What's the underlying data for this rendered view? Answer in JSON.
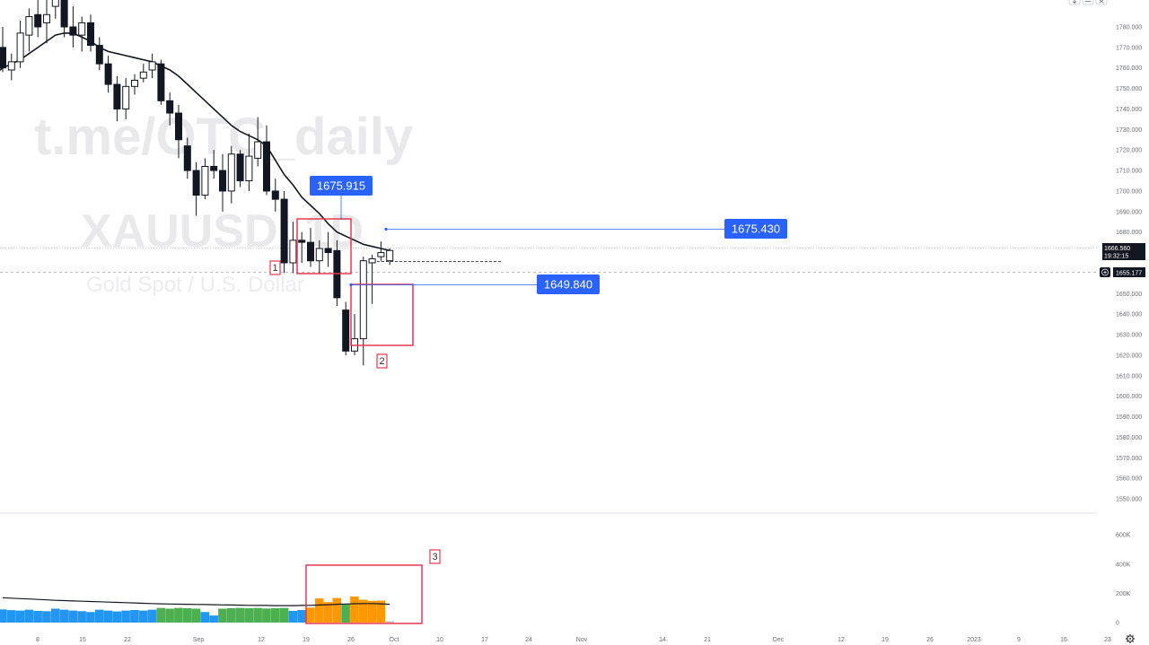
{
  "watermark": {
    "line1": "t.me/OTC_daily",
    "line2": "XAUUSD, 1D",
    "line3": "Gold Spot / U.S. Dollar"
  },
  "top_icons": [
    "down-arrow-icon",
    "minus-icon",
    "close-icon"
  ],
  "settings_icon": "gear-icon",
  "price_axis": {
    "min": 1550,
    "max": 1780,
    "ticks": [
      "1780.000",
      "1770.000",
      "1760.000",
      "1750.000",
      "1740.000",
      "1730.000",
      "1720.000",
      "1710.000",
      "1700.000",
      "1690.000",
      "1680.000",
      "1670.000",
      "1660.000",
      "1650.000",
      "1640.000",
      "1630.000",
      "1620.000",
      "1610.000",
      "1600.000",
      "1590.000",
      "1580.000",
      "1570.000",
      "1560.000",
      "1550.000"
    ],
    "current_price": "1666.560",
    "countdown": "19:32:15",
    "crosshair_price": "1655.177",
    "crosshair_icon": "plus-icon"
  },
  "volume_axis": {
    "max": 650000,
    "ticks": [
      "600K",
      "400K",
      "200K",
      "0"
    ]
  },
  "time_axis": {
    "labels": [
      "8",
      "15",
      "22",
      "Sep",
      "12",
      "19",
      "26",
      "Oct",
      "10",
      "17",
      "24",
      "Nov",
      "14",
      "21",
      "Dec",
      "12",
      "19",
      "26",
      "2023",
      "9",
      "16",
      "23"
    ]
  },
  "annotations": {
    "label_high": "1675.915",
    "label_right": "1675.430",
    "label_low": "1649.840",
    "box_1": "1",
    "box_2": "2",
    "box_3": "3"
  },
  "chart_data": {
    "type": "candlestick",
    "symbol": "XAUUSD",
    "timeframe": "1D",
    "ylim": [
      1550,
      1780
    ],
    "candles": [
      {
        "o": 1770,
        "h": 1780,
        "l": 1758,
        "c": 1760
      },
      {
        "o": 1759,
        "h": 1767,
        "l": 1754,
        "c": 1763
      },
      {
        "o": 1763,
        "h": 1783,
        "l": 1760,
        "c": 1777
      },
      {
        "o": 1776,
        "h": 1789,
        "l": 1768,
        "c": 1785
      },
      {
        "o": 1786,
        "h": 1800,
        "l": 1775,
        "c": 1780
      },
      {
        "o": 1782,
        "h": 1800,
        "l": 1772,
        "c": 1786
      },
      {
        "o": 1790,
        "h": 1800,
        "l": 1784,
        "c": 1796
      },
      {
        "o": 1795,
        "h": 1800,
        "l": 1775,
        "c": 1780
      },
      {
        "o": 1780,
        "h": 1790,
        "l": 1770,
        "c": 1776
      },
      {
        "o": 1776,
        "h": 1785,
        "l": 1768,
        "c": 1782
      },
      {
        "o": 1782,
        "h": 1786,
        "l": 1768,
        "c": 1771
      },
      {
        "o": 1771,
        "h": 1775,
        "l": 1759,
        "c": 1762
      },
      {
        "o": 1762,
        "h": 1766,
        "l": 1748,
        "c": 1752
      },
      {
        "o": 1752,
        "h": 1756,
        "l": 1734,
        "c": 1740
      },
      {
        "o": 1740,
        "h": 1755,
        "l": 1735,
        "c": 1751
      },
      {
        "o": 1751,
        "h": 1757,
        "l": 1747,
        "c": 1754
      },
      {
        "o": 1755,
        "h": 1762,
        "l": 1753,
        "c": 1758
      },
      {
        "o": 1759,
        "h": 1767,
        "l": 1755,
        "c": 1763
      },
      {
        "o": 1762,
        "h": 1764,
        "l": 1742,
        "c": 1744
      },
      {
        "o": 1744,
        "h": 1748,
        "l": 1732,
        "c": 1738
      },
      {
        "o": 1738,
        "h": 1742,
        "l": 1716,
        "c": 1725
      },
      {
        "o": 1722,
        "h": 1726,
        "l": 1706,
        "c": 1710
      },
      {
        "o": 1710,
        "h": 1714,
        "l": 1688,
        "c": 1698
      },
      {
        "o": 1698,
        "h": 1716,
        "l": 1696,
        "c": 1712
      },
      {
        "o": 1712,
        "h": 1720,
        "l": 1706,
        "c": 1710
      },
      {
        "o": 1710,
        "h": 1718,
        "l": 1690,
        "c": 1700
      },
      {
        "o": 1700,
        "h": 1722,
        "l": 1694,
        "c": 1718
      },
      {
        "o": 1718,
        "h": 1720,
        "l": 1702,
        "c": 1705
      },
      {
        "o": 1705,
        "h": 1728,
        "l": 1700,
        "c": 1717
      },
      {
        "o": 1716,
        "h": 1736,
        "l": 1712,
        "c": 1724
      },
      {
        "o": 1724,
        "h": 1732,
        "l": 1698,
        "c": 1700
      },
      {
        "o": 1700,
        "h": 1706,
        "l": 1690,
        "c": 1696
      },
      {
        "o": 1696,
        "h": 1700,
        "l": 1660,
        "c": 1665
      },
      {
        "o": 1665,
        "h": 1685,
        "l": 1660,
        "c": 1676
      },
      {
        "o": 1676,
        "h": 1680,
        "l": 1665,
        "c": 1675
      },
      {
        "o": 1675,
        "h": 1682,
        "l": 1663,
        "c": 1666
      },
      {
        "o": 1666,
        "h": 1676,
        "l": 1660,
        "c": 1672
      },
      {
        "o": 1672,
        "h": 1680,
        "l": 1663,
        "c": 1670
      },
      {
        "o": 1671,
        "h": 1676,
        "l": 1644,
        "c": 1648
      },
      {
        "o": 1642,
        "h": 1646,
        "l": 1620,
        "c": 1622
      },
      {
        "o": 1622,
        "h": 1640,
        "l": 1620,
        "c": 1628
      },
      {
        "o": 1628,
        "h": 1668,
        "l": 1615,
        "c": 1666
      },
      {
        "o": 1665,
        "h": 1669,
        "l": 1645,
        "c": 1667
      },
      {
        "o": 1668,
        "h": 1675.4,
        "l": 1666,
        "c": 1670
      },
      {
        "o": 1666,
        "h": 1672,
        "l": 1664,
        "c": 1671
      }
    ],
    "moving_average": [
      1760,
      1762,
      1764,
      1767,
      1770,
      1773,
      1776,
      1777,
      1777,
      1775,
      1773,
      1770,
      1768,
      1767,
      1766,
      1765,
      1764,
      1763,
      1761,
      1759,
      1756,
      1752,
      1748,
      1744,
      1740,
      1736,
      1732,
      1729,
      1727,
      1725,
      1722,
      1715,
      1708,
      1703,
      1697,
      1693,
      1689,
      1684,
      1680,
      1678,
      1676,
      1674,
      1673,
      1672,
      1671
    ],
    "volume": [
      {
        "v": 90000,
        "c": "blue"
      },
      {
        "v": 85000,
        "c": "blue"
      },
      {
        "v": 82000,
        "c": "blue"
      },
      {
        "v": 88000,
        "c": "blue"
      },
      {
        "v": 80000,
        "c": "blue"
      },
      {
        "v": 78000,
        "c": "blue"
      },
      {
        "v": 95000,
        "c": "blue"
      },
      {
        "v": 88000,
        "c": "blue"
      },
      {
        "v": 82000,
        "c": "blue"
      },
      {
        "v": 78000,
        "c": "blue"
      },
      {
        "v": 72000,
        "c": "blue"
      },
      {
        "v": 88000,
        "c": "blue"
      },
      {
        "v": 82000,
        "c": "blue"
      },
      {
        "v": 76000,
        "c": "blue"
      },
      {
        "v": 82000,
        "c": "blue"
      },
      {
        "v": 86000,
        "c": "blue"
      },
      {
        "v": 82000,
        "c": "blue"
      },
      {
        "v": 88000,
        "c": "blue"
      },
      {
        "v": 100000,
        "c": "green"
      },
      {
        "v": 95000,
        "c": "green"
      },
      {
        "v": 100000,
        "c": "green"
      },
      {
        "v": 98000,
        "c": "green"
      },
      {
        "v": 95000,
        "c": "green"
      },
      {
        "v": 72000,
        "c": "blue"
      },
      {
        "v": 48000,
        "c": "blue"
      },
      {
        "v": 95000,
        "c": "green"
      },
      {
        "v": 98000,
        "c": "green"
      },
      {
        "v": 100000,
        "c": "green"
      },
      {
        "v": 98000,
        "c": "green"
      },
      {
        "v": 100000,
        "c": "green"
      },
      {
        "v": 96000,
        "c": "green"
      },
      {
        "v": 98000,
        "c": "green"
      },
      {
        "v": 100000,
        "c": "green"
      },
      {
        "v": 80000,
        "c": "blue"
      },
      {
        "v": 86000,
        "c": "blue"
      },
      {
        "v": 102000,
        "c": "orange"
      },
      {
        "v": 165000,
        "c": "orange"
      },
      {
        "v": 140000,
        "c": "orange"
      },
      {
        "v": 168000,
        "c": "orange"
      },
      {
        "v": 125000,
        "c": "green"
      },
      {
        "v": 178000,
        "c": "orange"
      },
      {
        "v": 156000,
        "c": "orange"
      },
      {
        "v": 148000,
        "c": "orange"
      },
      {
        "v": 150000,
        "c": "orange"
      },
      {
        "v": 8000,
        "c": "gray"
      }
    ],
    "volume_ma": [
      170000,
      167000,
      164000,
      161000,
      158000,
      155000,
      152000,
      150000,
      148000,
      146000,
      144000,
      142000,
      140000,
      138000,
      136000,
      134000,
      132000,
      130000,
      128000,
      127000,
      126000,
      125000,
      124000,
      123000,
      122000,
      121000,
      120000,
      119000,
      118000,
      117000,
      117000,
      116000,
      116000,
      116000,
      117000,
      118000,
      120000,
      122000,
      125000,
      127000,
      129000,
      130000,
      130000,
      128000,
      125000
    ]
  }
}
